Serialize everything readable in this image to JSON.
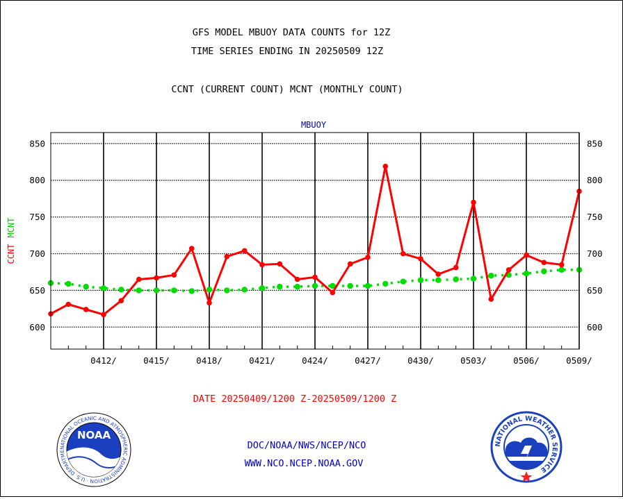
{
  "header": {
    "title_line1": "GFS MODEL MBUOY DATA COUNTS for 12Z",
    "title_line2": "TIME SERIES ENDING IN 20250509 12Z",
    "subtitle": "CCNT (CURRENT COUNT) MCNT (MONTHLY COUNT)"
  },
  "footer": {
    "date_range": "DATE 20250409/1200 Z-20250509/1200 Z",
    "link_org": "DOC/NOAA/NWS/NCEP/NCO",
    "link_site": "WWW.NCO.NCEP.NOAA.GOV",
    "noaa_logo_text": "NOAA",
    "noaa_ring_text": "NATIONAL OCEANIC AND ATMOSPHERIC ADMINISTRATION · U.S. DEPARTMENT OF COMMERCE ·",
    "nws_ring_text": "NATIONAL WEATHER SERVICE"
  },
  "colors": {
    "ccnt": "#ff0000",
    "mcnt": "#00dd00",
    "plot_label": "#0000cc",
    "link": "#0000cc",
    "date": "#ff0000"
  },
  "chart_data": {
    "type": "line",
    "title": "MBUOY",
    "ylabel_parts": [
      "CCNT",
      "MCNT"
    ],
    "ylim": [
      570,
      865
    ],
    "yticks": [
      600,
      650,
      700,
      750,
      800,
      850
    ],
    "xlim": [
      "20250409",
      "20250509"
    ],
    "xtick_labels": [
      "0412/",
      "0415/",
      "0418/",
      "0421/",
      "0424/",
      "0427/",
      "0430/",
      "0503/",
      "0506/",
      "0509/"
    ],
    "xtick_dates": [
      "20250412",
      "20250415",
      "20250418",
      "20250421",
      "20250424",
      "20250427",
      "20250430",
      "20250503",
      "20250506",
      "20250509"
    ],
    "grid": true,
    "x": [
      "20250409",
      "20250410",
      "20250411",
      "20250412",
      "20250413",
      "20250414",
      "20250415",
      "20250416",
      "20250417",
      "20250418",
      "20250419",
      "20250420",
      "20250421",
      "20250422",
      "20250423",
      "20250424",
      "20250425",
      "20250426",
      "20250427",
      "20250428",
      "20250429",
      "20250430",
      "20250501",
      "20250502",
      "20250503",
      "20250504",
      "20250505",
      "20250506",
      "20250507",
      "20250508",
      "20250509"
    ],
    "series": [
      {
        "name": "CCNT",
        "values": [
          618,
          631,
          624,
          617,
          636,
          665,
          667,
          671,
          707,
          633,
          696,
          704,
          685,
          686,
          665,
          668,
          647,
          686,
          695,
          819,
          700,
          693,
          672,
          681,
          770,
          638,
          678,
          698,
          688,
          685,
          785
        ]
      },
      {
        "name": "MCNT",
        "values": [
          660,
          659,
          655,
          653,
          651,
          650,
          650,
          650,
          649,
          651,
          650,
          651,
          653,
          655,
          655,
          656,
          656,
          656,
          656,
          659,
          662,
          664,
          664,
          665,
          666,
          670,
          671,
          673,
          676,
          678,
          678
        ]
      }
    ]
  }
}
